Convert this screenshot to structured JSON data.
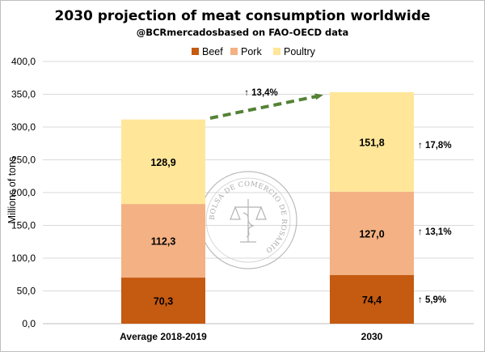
{
  "chart_data": {
    "type": "bar",
    "stacked": true,
    "title": "2030 projection of meat consumption worldwide",
    "subtitle": "@BCRmercadosbased  on FAO-OECD data",
    "ylabel": "Millions of tons",
    "xlabel": "",
    "ylim": [
      0,
      400
    ],
    "yticks": [
      "0,0",
      "50,0",
      "100,0",
      "150,0",
      "200,0",
      "250,0",
      "300,0",
      "350,0",
      "400,0"
    ],
    "categories": [
      "Average 2018-2019",
      "2030"
    ],
    "legend_position": "top",
    "grid": true,
    "series": [
      {
        "name": "Beef",
        "color": "#c55a11",
        "values": [
          70.3,
          74.4
        ],
        "labels": [
          "70,3",
          "74,4"
        ]
      },
      {
        "name": "Pork",
        "color": "#f4b183",
        "values": [
          112.3,
          127.0
        ],
        "labels": [
          "112,3",
          "127,0"
        ]
      },
      {
        "name": "Poultry",
        "color": "#ffe699",
        "values": [
          128.9,
          151.8
        ],
        "labels": [
          "128,9",
          "151,8"
        ]
      }
    ],
    "growth_annotations": {
      "total": "↑ 13,4%",
      "beef": "↑ 5,9%",
      "pork": "↑ 13,1%",
      "poultry": "↑ 17,8%"
    },
    "arrow_color": "#548235"
  },
  "watermark": "BOLSA DE COMERCIO DE ROSARIO"
}
